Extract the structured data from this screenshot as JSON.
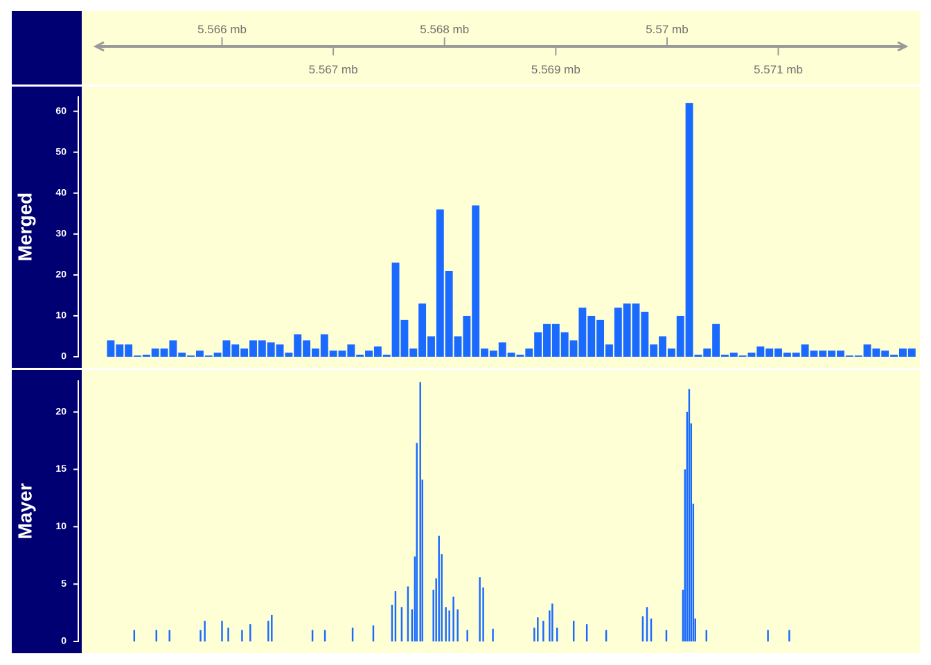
{
  "chart_data": [
    {
      "type": "axis",
      "xlim": [
        5564739,
        5572273
      ],
      "xticks": [
        {
          "value": 5566000,
          "label": "5.566 mb"
        },
        {
          "value": 5567000,
          "label": "5.567 mb"
        },
        {
          "value": 5568000,
          "label": "5.568 mb"
        },
        {
          "value": 5569000,
          "label": "5.569 mb"
        },
        {
          "value": 5570000,
          "label": "5.57 mb"
        },
        {
          "value": 5571000,
          "label": "5.571 mb"
        }
      ],
      "color": "#9a9a9a"
    },
    {
      "type": "bar",
      "title": "Merged",
      "color": "#1a6aff",
      "xlim": [
        5564739,
        5572273
      ],
      "ylim": [
        0,
        63.5
      ],
      "yticks": [
        0,
        10,
        20,
        30,
        40,
        50,
        60
      ],
      "x": [
        5565000,
        5565080,
        5565160,
        5565240,
        5565320,
        5565400,
        5565480,
        5565560,
        5565640,
        5565720,
        5565800,
        5565880,
        5565960,
        5566040,
        5566120,
        5566200,
        5566280,
        5566360,
        5566440,
        5566520,
        5566600,
        5566680,
        5566760,
        5566840,
        5566920,
        5567000,
        5567080,
        5567160,
        5567240,
        5567320,
        5567400,
        5567480,
        5567560,
        5567640,
        5567720,
        5567800,
        5567880,
        5567960,
        5568040,
        5568120,
        5568200,
        5568280,
        5568360,
        5568440,
        5568520,
        5568600,
        5568680,
        5568760,
        5568840,
        5568920,
        5569000,
        5569080,
        5569160,
        5569240,
        5569320,
        5569400,
        5569480,
        5569560,
        5569640,
        5569720,
        5569800,
        5569880,
        5569960,
        5570040,
        5570120,
        5570200,
        5570280,
        5570360,
        5570440,
        5570520,
        5570600,
        5570680,
        5570760,
        5570840,
        5570920,
        5571000,
        5571080,
        5571160,
        5571240,
        5571320,
        5571400,
        5571480,
        5571560,
        5571640,
        5571720,
        5571800,
        5571880,
        5571960,
        5572040,
        5572120,
        5572200
      ],
      "values": [
        4,
        3,
        3,
        0.3,
        0.5,
        2,
        2,
        4,
        1,
        0.3,
        1.5,
        0.3,
        1,
        4,
        3,
        2,
        4,
        4,
        3.5,
        3,
        1,
        5.5,
        4,
        2,
        5.5,
        1.5,
        1.5,
        3,
        0.5,
        1.5,
        2.5,
        0.5,
        23,
        9,
        2,
        13,
        5,
        36,
        21,
        5,
        10,
        37,
        2,
        1.5,
        3.5,
        1,
        0.5,
        2,
        6,
        8,
        8,
        6,
        4,
        12,
        10,
        9,
        3,
        12,
        13,
        13,
        11,
        3,
        5,
        2,
        10,
        62,
        0.5,
        2,
        8,
        0.5,
        1,
        0.3,
        1,
        2.5,
        2,
        2,
        1,
        1,
        3,
        1.5,
        1.5,
        1.5,
        1.5,
        0.3,
        0.3,
        3,
        2,
        1.5,
        0.5,
        2,
        2
      ]
    },
    {
      "type": "bar",
      "title": "Mayer",
      "color": "#1a6aff",
      "xlim": [
        5564739,
        5572273
      ],
      "ylim": [
        0,
        22.7
      ],
      "yticks": [
        0,
        5,
        10,
        15,
        20
      ],
      "x": [
        5565211,
        5565410,
        5565528,
        5565807,
        5565845,
        5566000,
        5566056,
        5566180,
        5566254,
        5566416,
        5566447,
        5566813,
        5566925,
        5567174,
        5567360,
        5567528,
        5567559,
        5567615,
        5567671,
        5567708,
        5567733,
        5567751,
        5567782,
        5567801,
        5567900,
        5567925,
        5567950,
        5567975,
        5568012,
        5568043,
        5568080,
        5568118,
        5568205,
        5568317,
        5568348,
        5568435,
        5568807,
        5568838,
        5568888,
        5568944,
        5568969,
        5569012,
        5569161,
        5569279,
        5569453,
        5569782,
        5569820,
        5569857,
        5569994,
        5570143,
        5570161,
        5570180,
        5570199,
        5570217,
        5570236,
        5570254,
        5570354,
        5570907,
        5571099
      ],
      "values": [
        1,
        1,
        1,
        1,
        1.8,
        1.8,
        1.2,
        1,
        1.5,
        1.8,
        2.3,
        1,
        1,
        1.2,
        1.4,
        3.2,
        4.4,
        3,
        4.8,
        2.8,
        7.4,
        17.3,
        22.6,
        14.1,
        4.5,
        5.5,
        9.2,
        7.6,
        3,
        2.7,
        3.9,
        2.8,
        1,
        5.6,
        4.7,
        1.1,
        1.2,
        2.1,
        1.8,
        2.7,
        3.3,
        1.2,
        1.8,
        1.5,
        1,
        2.2,
        3,
        2,
        1,
        4.5,
        15,
        20,
        22,
        19,
        12,
        2,
        1,
        1,
        1
      ]
    }
  ]
}
